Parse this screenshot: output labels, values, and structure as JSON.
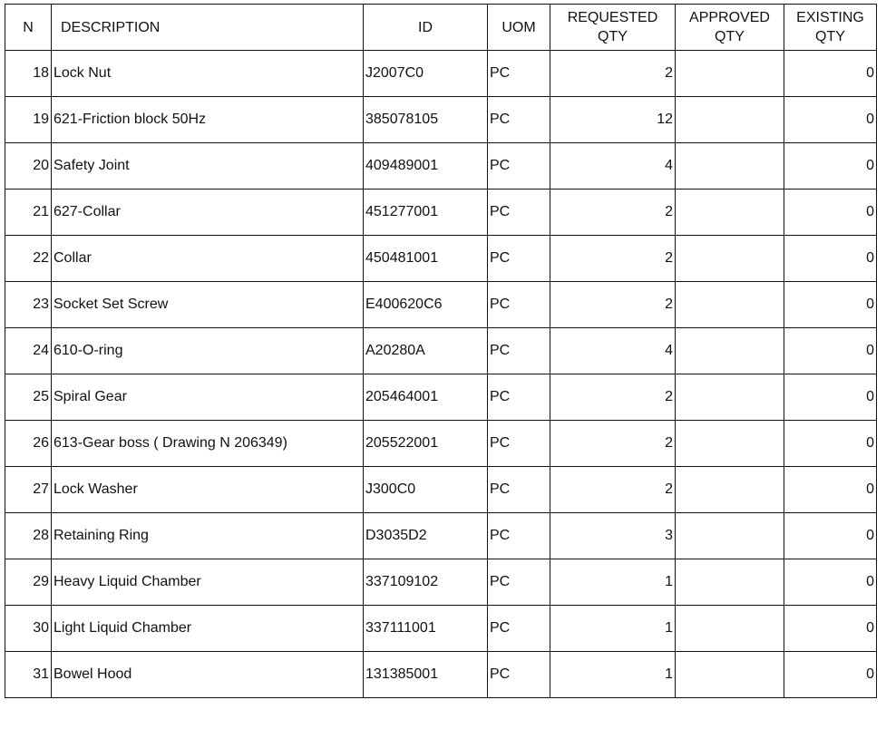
{
  "headers": {
    "n": "N",
    "description": "DESCRIPTION",
    "id": "ID",
    "uom": "UOM",
    "requested_qty": "REQUESTED QTY",
    "approved_qty": "APPROVED QTY",
    "existing_qty": "EXISTING QTY"
  },
  "rows": [
    {
      "n": "18",
      "description": "Lock Nut",
      "id": "J2007C0",
      "uom": "PC",
      "requested_qty": "2",
      "approved_qty": "",
      "existing_qty": "0"
    },
    {
      "n": "19",
      "description": "621-Friction block 50Hz",
      "id": "385078105",
      "uom": "PC",
      "requested_qty": "12",
      "approved_qty": "",
      "existing_qty": "0"
    },
    {
      "n": "20",
      "description": "Safety Joint",
      "id": "409489001",
      "uom": "PC",
      "requested_qty": "4",
      "approved_qty": "",
      "existing_qty": "0"
    },
    {
      "n": "21",
      "description": "627-Collar",
      "id": "451277001",
      "uom": "PC",
      "requested_qty": "2",
      "approved_qty": "",
      "existing_qty": "0"
    },
    {
      "n": "22",
      "description": "Collar",
      "id": "450481001",
      "uom": "PC",
      "requested_qty": "2",
      "approved_qty": "",
      "existing_qty": "0"
    },
    {
      "n": "23",
      "description": "Socket Set Screw",
      "id": "E400620C6",
      "uom": "PC",
      "requested_qty": "2",
      "approved_qty": "",
      "existing_qty": "0"
    },
    {
      "n": "24",
      "description": "610-O-ring",
      "id": "A20280A",
      "uom": "PC",
      "requested_qty": "4",
      "approved_qty": "",
      "existing_qty": "0"
    },
    {
      "n": "25",
      "description": "Spiral Gear",
      "id": "205464001",
      "uom": "PC",
      "requested_qty": "2",
      "approved_qty": "",
      "existing_qty": "0"
    },
    {
      "n": "26",
      "description": "613-Gear boss ( Drawing N 206349)",
      "id": "205522001",
      "uom": "PC",
      "requested_qty": "2",
      "approved_qty": "",
      "existing_qty": "0"
    },
    {
      "n": "27",
      "description": "Lock Washer",
      "id": "J300C0",
      "uom": "PC",
      "requested_qty": "2",
      "approved_qty": "",
      "existing_qty": "0"
    },
    {
      "n": "28",
      "description": "Retaining Ring",
      "id": "D3035D2",
      "uom": "PC",
      "requested_qty": "3",
      "approved_qty": "",
      "existing_qty": "0"
    },
    {
      "n": "29",
      "description": "Heavy Liquid Chamber",
      "id": "337109102",
      "uom": "PC",
      "requested_qty": "1",
      "approved_qty": "",
      "existing_qty": "0"
    },
    {
      "n": "30",
      "description": "Light Liquid Chamber",
      "id": "337111001",
      "uom": "PC",
      "requested_qty": "1",
      "approved_qty": "",
      "existing_qty": "0"
    },
    {
      "n": "31",
      "description": "Bowel Hood",
      "id": "131385001",
      "uom": "PC",
      "requested_qty": "1",
      "approved_qty": "",
      "existing_qty": "0"
    }
  ]
}
